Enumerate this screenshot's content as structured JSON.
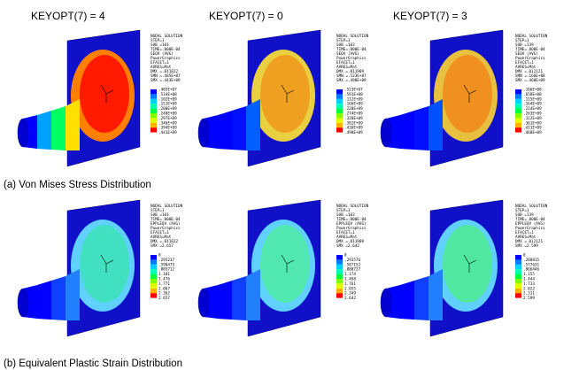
{
  "headers": [
    "KEYOPT(7) = 4",
    "KEYOPT(7) =  0",
    "KEYOPT(7) = 3"
  ],
  "captions": [
    "(a) Von Mises Stress Distribution",
    "(b) Equivalent Plastic Strain Distribution"
  ],
  "panels": [
    {
      "info": [
        "NODAL SOLUTION",
        "STEP=1",
        "SUB =101",
        "TIME=.800E-04",
        "SEQV     (AVG)",
        "PowerGraphics",
        "EFACET=1",
        "AVRES=Mat",
        "DMX =.011822",
        "SMN =.485E+07",
        "SMX =.443E+09"
      ],
      "contour_labels": [
        ".485E+07",
        ".534E+08",
        ".102E+09",
        ".151E+09",
        ".200E+09",
        ".248E+09",
        ".297E+09",
        ".346E+09",
        ".394E+09",
        ".443E+09"
      ]
    },
    {
      "info": [
        "NODAL SOLUTION",
        "STEP=1",
        "SUB =103",
        "TIME=.800E-04",
        "SEQV     (AVG)",
        "PowerGraphics",
        "EFACET=1",
        "AVRES=Mat",
        "DMX =.011909",
        "SMN =.523E+07",
        "SMX =.490E+09"
      ],
      "contour_labels": [
        ".523E+07",
        ".591E+08",
        ".112E+09",
        ".166E+09",
        ".220E+09",
        ".274E+09",
        ".328E+09",
        ".382E+09",
        ".436E+09",
        ".490E+09"
      ]
    },
    {
      "info": [
        "NODAL SOLUTION",
        "STEP=1",
        "SUB =139",
        "TIME=.800E-04",
        "SEQV     (AVG)",
        "PowerGraphics",
        "EFACET=1",
        "AVRES=Mat",
        "DMX =.012121",
        "SMN =.166E+08",
        "SMX =.460E+09"
      ],
      "contour_labels": [
        ".166E+08",
        ".658E+08",
        ".115E+09",
        ".164E+09",
        ".214E+09",
        ".263E+09",
        ".312E+09",
        ".361E+09",
        ".411E+09",
        ".460E+09"
      ]
    },
    {
      "info": [
        "NODAL SOLUTION",
        "STEP=1",
        "SUB =101",
        "TIME=.800E-04",
        "EPPLEQV  (AVG)",
        "PowerGraphics",
        "EFACET=1",
        "AVRES=Mat",
        "DMX =.011822",
        "SMX =2.657"
      ],
      "contour_labels": [
        "0",
        ".295237",
        ".590475",
        ".885712",
        "1.181",
        "1.476",
        "1.771",
        "2.067",
        "2.362",
        "2.657"
      ]
    },
    {
      "info": [
        "NODAL SOLUTION",
        "STEP=1",
        "SUB =103",
        "TIME=.800E-04",
        "EPPLEQV  (AVG)",
        "PowerGraphics",
        "EFACET=1",
        "AVRES=Mat",
        "DMX =.011909",
        "SMX =2.642"
      ],
      "contour_labels": [
        "0",
        ".293576",
        ".587152",
        ".880727",
        "1.174",
        "1.468",
        "1.761",
        "2.055",
        "2.349",
        "2.642"
      ]
    },
    {
      "info": [
        "NODAL SOLUTION",
        "STEP=1",
        "SUB =139",
        "TIME=.800E-04",
        "EPPLEQV  (AVG)",
        "PowerGraphics",
        "EFACET=1",
        "AVRES=Mat",
        "DMX =.012121",
        "SMX =2.599"
      ],
      "contour_labels": [
        "0",
        ".288815",
        ".577631",
        ".866446",
        "1.155",
        "1.444",
        "1.733",
        "2.022",
        "2.311",
        "2.599"
      ]
    }
  ]
}
